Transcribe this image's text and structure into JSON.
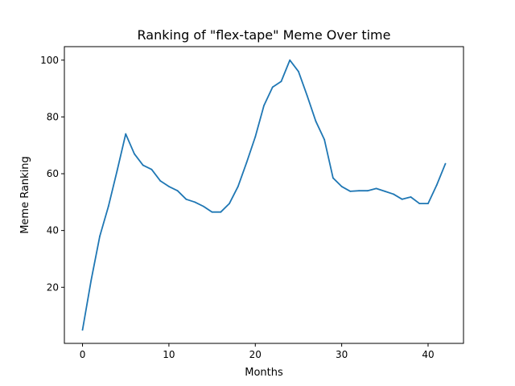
{
  "chart_data": {
    "type": "line",
    "title": "Ranking of \"flex-tape\" Meme Over time",
    "xlabel": "Months",
    "ylabel": "Meme Ranking",
    "xlim": [
      -2.1,
      44.1
    ],
    "ylim": [
      0.25,
      104.75
    ],
    "xticks": [
      0,
      10,
      20,
      30,
      40
    ],
    "yticks": [
      20,
      40,
      60,
      80,
      100
    ],
    "grid": false,
    "line_color": "#1f77b4",
    "series": [
      {
        "x": [
          0,
          1,
          2,
          3,
          4,
          5,
          6,
          7,
          8,
          9,
          10,
          11,
          12,
          13,
          14,
          15,
          16,
          17,
          18,
          19,
          20,
          21,
          22,
          23,
          24,
          25,
          26,
          27,
          28,
          29,
          30,
          31,
          32,
          33,
          34,
          35,
          36,
          37,
          38,
          39,
          40,
          41,
          42
        ],
        "values": [
          5,
          22.5,
          38,
          48.5,
          61,
          74,
          67,
          63,
          61.5,
          57.5,
          55.5,
          54,
          51,
          50,
          48.5,
          46.5,
          46.5,
          49.5,
          55.5,
          64,
          73,
          84,
          90.5,
          92.5,
          100,
          96,
          87.5,
          78.5,
          72,
          58.5,
          55.5,
          53.8,
          54,
          54,
          54.8,
          53.8,
          52.8,
          51,
          51.8,
          49.5,
          49.5,
          56,
          63.5
        ]
      }
    ]
  }
}
